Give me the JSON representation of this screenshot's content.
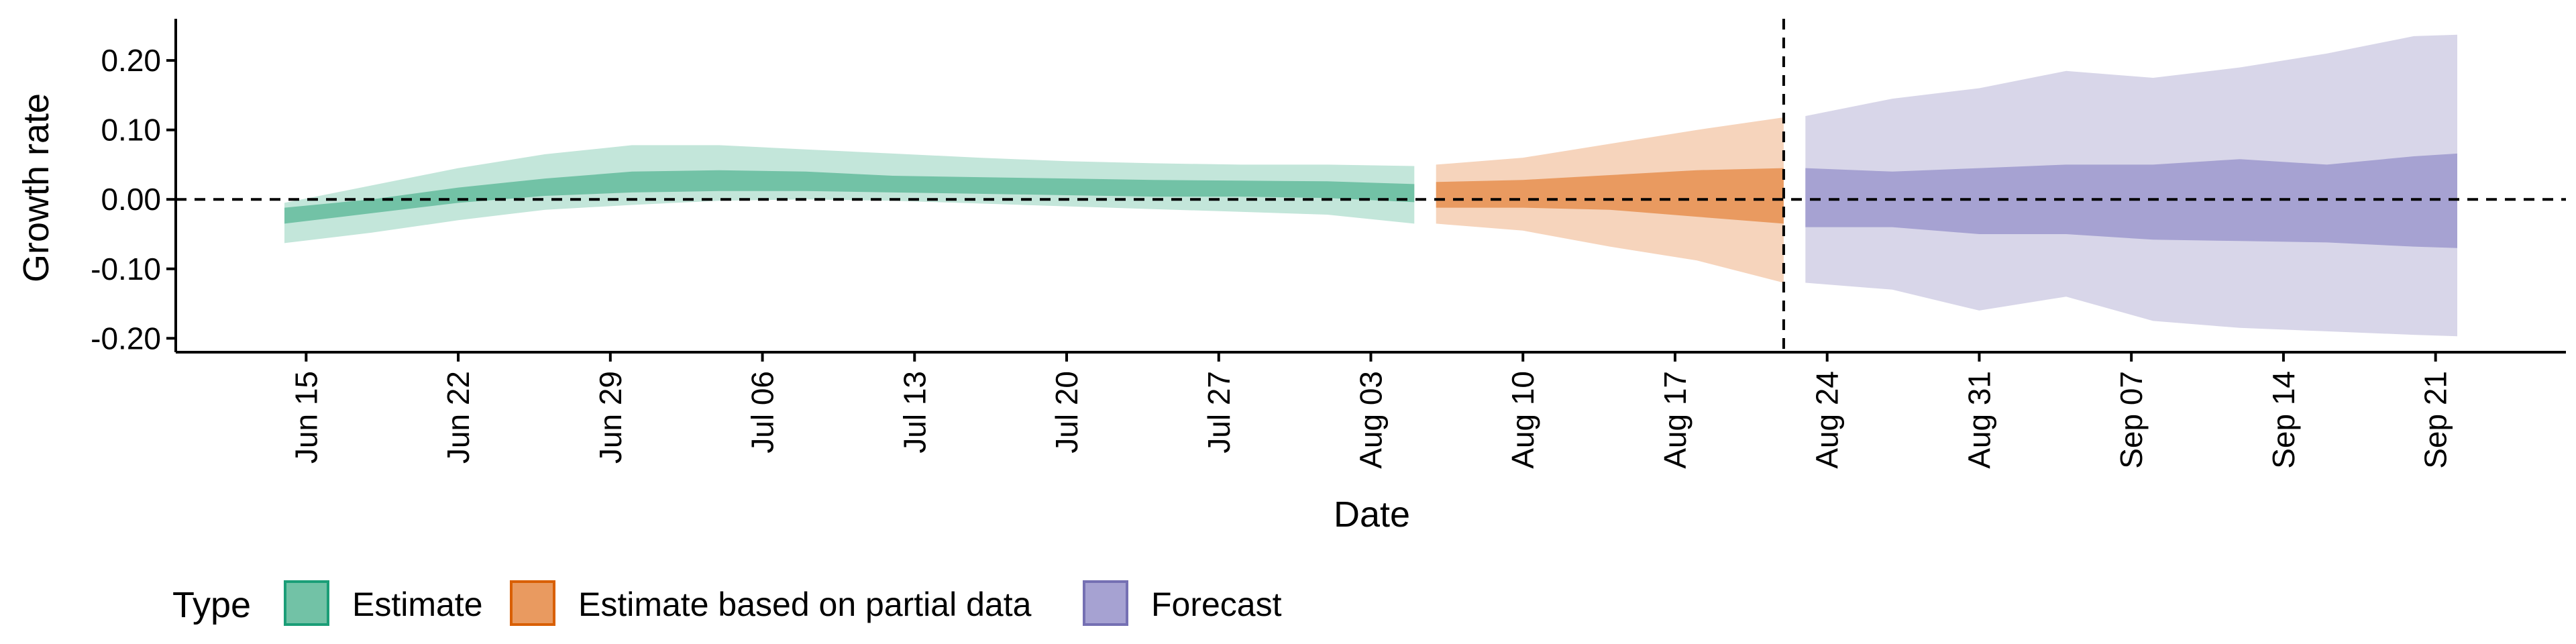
{
  "chart_data": {
    "type": "area",
    "xlabel": "Date",
    "ylabel": "Growth rate",
    "x_range": [
      "2020-06-09",
      "2020-09-27"
    ],
    "ylim": [
      -0.22,
      0.26
    ],
    "y_ticks": [
      -0.2,
      -0.1,
      0.0,
      0.1,
      0.2
    ],
    "y_tick_labels": [
      "-0.20",
      "-0.10",
      "0.00",
      "0.10",
      "0.20"
    ],
    "x_ticks": [
      "2020-06-15",
      "2020-06-22",
      "2020-06-29",
      "2020-07-06",
      "2020-07-13",
      "2020-07-20",
      "2020-07-27",
      "2020-08-03",
      "2020-08-10",
      "2020-08-17",
      "2020-08-24",
      "2020-08-31",
      "2020-09-07",
      "2020-09-14",
      "2020-09-21"
    ],
    "x_tick_labels": [
      "Jun 15",
      "Jun 22",
      "Jun 29",
      "Jul 06",
      "Jul 13",
      "Jul 20",
      "Jul 27",
      "Aug 03",
      "Aug 10",
      "Aug 17",
      "Aug 24",
      "Aug 31",
      "Sep 07",
      "Sep 14",
      "Sep 21"
    ],
    "hline": 0.0,
    "vline": "2020-08-22",
    "grid": false,
    "legend": {
      "title": "Type",
      "position": "bottom-left"
    },
    "series": [
      {
        "name": "Estimate",
        "color": "#1b9e77",
        "fill_outer": "#c3e6da",
        "fill_inner": "#72c2a6",
        "points": [
          {
            "date": "2020-06-14",
            "lo90": -0.063,
            "lo50": -0.035,
            "hi50": -0.012,
            "hi90": -0.005
          },
          {
            "date": "2020-06-18",
            "lo90": -0.048,
            "lo50": -0.02,
            "hi50": 0.0,
            "hi90": 0.02
          },
          {
            "date": "2020-06-22",
            "lo90": -0.03,
            "lo50": -0.005,
            "hi50": 0.017,
            "hi90": 0.045
          },
          {
            "date": "2020-06-26",
            "lo90": -0.015,
            "lo50": 0.005,
            "hi50": 0.03,
            "hi90": 0.065
          },
          {
            "date": "2020-06-30",
            "lo90": -0.008,
            "lo50": 0.01,
            "hi50": 0.04,
            "hi90": 0.078
          },
          {
            "date": "2020-07-04",
            "lo90": -0.002,
            "lo50": 0.012,
            "hi50": 0.042,
            "hi90": 0.078
          },
          {
            "date": "2020-07-08",
            "lo90": 0.0,
            "lo50": 0.012,
            "hi50": 0.04,
            "hi90": 0.072
          },
          {
            "date": "2020-07-12",
            "lo90": -0.002,
            "lo50": 0.01,
            "hi50": 0.034,
            "hi90": 0.066
          },
          {
            "date": "2020-07-16",
            "lo90": -0.006,
            "lo50": 0.008,
            "hi50": 0.032,
            "hi90": 0.06
          },
          {
            "date": "2020-07-20",
            "lo90": -0.01,
            "lo50": 0.006,
            "hi50": 0.03,
            "hi90": 0.055
          },
          {
            "date": "2020-07-24",
            "lo90": -0.014,
            "lo50": 0.004,
            "hi50": 0.028,
            "hi90": 0.052
          },
          {
            "date": "2020-07-28",
            "lo90": -0.018,
            "lo50": 0.004,
            "hi50": 0.027,
            "hi90": 0.05
          },
          {
            "date": "2020-08-01",
            "lo90": -0.022,
            "lo50": 0.002,
            "hi50": 0.026,
            "hi90": 0.05
          },
          {
            "date": "2020-08-05",
            "lo90": -0.035,
            "lo50": -0.004,
            "hi50": 0.022,
            "hi90": 0.048
          }
        ]
      },
      {
        "name": "Estimate based on partial data",
        "color": "#d95f02",
        "fill_outer": "#f6d4bc",
        "fill_inner": "#e99a60",
        "points": [
          {
            "date": "2020-08-06",
            "lo90": -0.035,
            "lo50": -0.012,
            "hi50": 0.025,
            "hi90": 0.05
          },
          {
            "date": "2020-08-10",
            "lo90": -0.045,
            "lo50": -0.012,
            "hi50": 0.028,
            "hi90": 0.06
          },
          {
            "date": "2020-08-14",
            "lo90": -0.068,
            "lo50": -0.015,
            "hi50": 0.035,
            "hi90": 0.08
          },
          {
            "date": "2020-08-18",
            "lo90": -0.088,
            "lo50": -0.025,
            "hi50": 0.042,
            "hi90": 0.1
          },
          {
            "date": "2020-08-22",
            "lo90": -0.12,
            "lo50": -0.035,
            "hi50": 0.045,
            "hi90": 0.118
          }
        ]
      },
      {
        "name": "Forecast",
        "color": "#7570b3",
        "fill_outer": "#d8d6e9",
        "fill_inner": "#a6a2d2",
        "points": [
          {
            "date": "2020-08-23",
            "lo90": -0.12,
            "lo50": -0.04,
            "hi50": 0.045,
            "hi90": 0.12
          },
          {
            "date": "2020-08-27",
            "lo90": -0.13,
            "lo50": -0.04,
            "hi50": 0.04,
            "hi90": 0.145
          },
          {
            "date": "2020-08-31",
            "lo90": -0.16,
            "lo50": -0.05,
            "hi50": 0.045,
            "hi90": 0.16
          },
          {
            "date": "2020-09-04",
            "lo90": -0.14,
            "lo50": -0.05,
            "hi50": 0.05,
            "hi90": 0.185
          },
          {
            "date": "2020-09-08",
            "lo90": -0.175,
            "lo50": -0.058,
            "hi50": 0.05,
            "hi90": 0.175
          },
          {
            "date": "2020-09-12",
            "lo90": -0.185,
            "lo50": -0.06,
            "hi50": 0.058,
            "hi90": 0.19
          },
          {
            "date": "2020-09-16",
            "lo90": -0.19,
            "lo50": -0.062,
            "hi50": 0.05,
            "hi90": 0.21
          },
          {
            "date": "2020-09-20",
            "lo90": -0.195,
            "lo50": -0.068,
            "hi50": 0.062,
            "hi90": 0.235
          },
          {
            "date": "2020-09-22",
            "lo90": -0.197,
            "lo50": -0.07,
            "hi50": 0.066,
            "hi90": 0.237
          }
        ]
      }
    ]
  }
}
